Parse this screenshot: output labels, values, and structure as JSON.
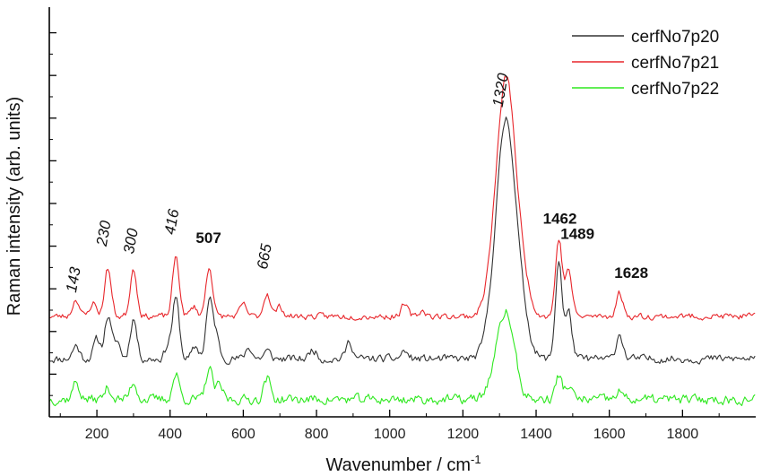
{
  "chart_data": {
    "type": "line",
    "xlabel": "Wavenumber / cm",
    "xlabel_sup": "-1",
    "ylabel": "Raman intensity (arb. units)",
    "xlim": [
      70,
      2000
    ],
    "ylim": [
      0,
      10.6
    ],
    "x_ticks": [
      200,
      400,
      600,
      800,
      1000,
      1200,
      1400,
      1600,
      1800
    ],
    "y_tick_count": 9,
    "grid": false,
    "legend_position": "top-right",
    "series": [
      {
        "name": "cerfNo7p20",
        "color": "#333333",
        "baseline": 1.5,
        "seed": 11,
        "noise": 0.09,
        "peaks": [
          [
            143,
            0.35
          ],
          [
            200,
            0.5
          ],
          [
            230,
            1.1
          ],
          [
            255,
            0.45
          ],
          [
            300,
            1.05
          ],
          [
            395,
            0.35
          ],
          [
            416,
            1.55
          ],
          [
            470,
            0.3
          ],
          [
            507,
            1.45
          ],
          [
            525,
            0.6
          ],
          [
            615,
            0.3
          ],
          [
            665,
            0.2
          ],
          [
            790,
            0.25
          ],
          [
            890,
            0.45
          ],
          [
            1040,
            0.2
          ],
          [
            1290,
            1.7
          ],
          [
            1320,
            5.15
          ],
          [
            1355,
            1.4
          ],
          [
            1462,
            2.55
          ],
          [
            1489,
            1.2
          ],
          [
            1628,
            0.65
          ]
        ]
      },
      {
        "name": "cerfNo7p21",
        "color": "#e8262b",
        "baseline": 2.6,
        "seed": 23,
        "noise": 0.07,
        "peaks": [
          [
            143,
            0.45
          ],
          [
            190,
            0.35
          ],
          [
            230,
            1.25
          ],
          [
            300,
            1.25
          ],
          [
            416,
            1.55
          ],
          [
            465,
            0.25
          ],
          [
            507,
            1.3
          ],
          [
            600,
            0.3
          ],
          [
            665,
            0.6
          ],
          [
            700,
            0.25
          ],
          [
            1040,
            0.3
          ],
          [
            1090,
            0.15
          ],
          [
            1290,
            1.6
          ],
          [
            1320,
            5.2
          ],
          [
            1355,
            1.3
          ],
          [
            1462,
            2.0
          ],
          [
            1489,
            1.2
          ],
          [
            1628,
            0.6
          ]
        ]
      },
      {
        "name": "cerfNo7p22",
        "color": "#2ee81f",
        "baseline": 0.45,
        "seed": 37,
        "noise": 0.11,
        "peaks": [
          [
            143,
            0.45
          ],
          [
            230,
            0.3
          ],
          [
            300,
            0.45
          ],
          [
            416,
            0.65
          ],
          [
            507,
            0.8
          ],
          [
            535,
            0.35
          ],
          [
            665,
            0.55
          ],
          [
            1320,
            2.05
          ],
          [
            1290,
            0.5
          ],
          [
            1462,
            0.6
          ],
          [
            1489,
            0.35
          ],
          [
            1628,
            0.2
          ]
        ]
      }
    ],
    "annotations": [
      {
        "text": "143",
        "x": 143,
        "y": 3.2,
        "style": "italic",
        "rotate": -80
      },
      {
        "text": "230",
        "x": 226,
        "y": 4.4,
        "style": "italic",
        "rotate": -80
      },
      {
        "text": "300",
        "x": 300,
        "y": 4.2,
        "style": "italic",
        "rotate": -80
      },
      {
        "text": "416",
        "x": 412,
        "y": 4.7,
        "style": "italic",
        "rotate": -80
      },
      {
        "text": "507",
        "x": 505,
        "y": 4.5,
        "style": "bold",
        "rotate": 0
      },
      {
        "text": "665",
        "x": 665,
        "y": 3.8,
        "style": "italic",
        "rotate": -80
      },
      {
        "text": "1320",
        "x": 1308,
        "y": 8.0,
        "style": "italic",
        "rotate": -80
      },
      {
        "text": "1462",
        "x": 1465,
        "y": 5.0,
        "style": "bold",
        "rotate": 0
      },
      {
        "text": "1489",
        "x": 1513,
        "y": 4.6,
        "style": "bold",
        "rotate": 0
      },
      {
        "text": "1628",
        "x": 1660,
        "y": 3.6,
        "style": "bold",
        "rotate": 0
      }
    ]
  }
}
